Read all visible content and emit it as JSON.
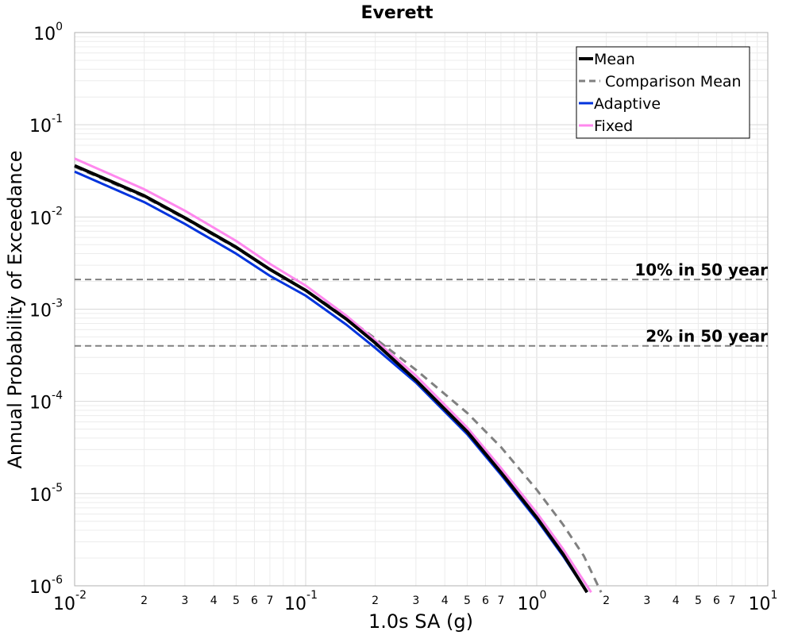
{
  "chart_data": {
    "type": "line",
    "title": "Everett",
    "xlabel": "1.0s SA (g)",
    "ylabel": "Annual Probability of Exceedance",
    "x_scale": "log",
    "y_scale": "log",
    "xlim": [
      0.01,
      10
    ],
    "ylim": [
      1e-06,
      1
    ],
    "grid": true,
    "legend_position": "top-right",
    "x_major_ticks": [
      {
        "value": 0.01,
        "base": "10",
        "exp": "-2"
      },
      {
        "value": 0.1,
        "base": "10",
        "exp": "-1"
      },
      {
        "value": 1,
        "base": "10",
        "exp": "0"
      },
      {
        "value": 10,
        "base": "10",
        "exp": "1"
      }
    ],
    "x_minor_tick_labels": [
      "2",
      "3",
      "4",
      "5",
      "6",
      "7"
    ],
    "y_major_ticks": [
      {
        "value": 1,
        "base": "10",
        "exp": "0"
      },
      {
        "value": 0.1,
        "base": "10",
        "exp": "-1"
      },
      {
        "value": 0.01,
        "base": "10",
        "exp": "-2"
      },
      {
        "value": 0.001,
        "base": "10",
        "exp": "-3"
      },
      {
        "value": 0.0001,
        "base": "10",
        "exp": "-4"
      },
      {
        "value": 1e-05,
        "base": "10",
        "exp": "-5"
      },
      {
        "value": 1e-06,
        "base": "10",
        "exp": "-6"
      }
    ],
    "reference_lines": [
      {
        "label": "10% in 50 year",
        "y": 0.0021,
        "color": "#808080"
      },
      {
        "label": "2% in 50 year",
        "y": 0.0004,
        "color": "#808080"
      }
    ],
    "series": [
      {
        "name": "Mean",
        "color": "#000000",
        "style": "solid",
        "width": 4,
        "points": [
          [
            0.01,
            0.036
          ],
          [
            0.02,
            0.017
          ],
          [
            0.03,
            0.0098
          ],
          [
            0.05,
            0.0047
          ],
          [
            0.07,
            0.0027
          ],
          [
            0.1,
            0.0016
          ],
          [
            0.15,
            0.00078
          ],
          [
            0.2,
            0.00043
          ],
          [
            0.3,
            0.00017
          ],
          [
            0.5,
            4.7e-05
          ],
          [
            0.7,
            1.7e-05
          ],
          [
            1.0,
            5.5e-06
          ],
          [
            1.3,
            2.2e-06
          ],
          [
            1.65,
            8.5e-07
          ]
        ]
      },
      {
        "name": "Comparison Mean",
        "color": "#808080",
        "style": "dashed",
        "width": 3,
        "points": [
          [
            0.01,
            0.035
          ],
          [
            0.02,
            0.0165
          ],
          [
            0.03,
            0.0096
          ],
          [
            0.05,
            0.0046
          ],
          [
            0.07,
            0.0027
          ],
          [
            0.1,
            0.0016
          ],
          [
            0.15,
            0.00082
          ],
          [
            0.2,
            0.00048
          ],
          [
            0.3,
            0.00022
          ],
          [
            0.5,
            7.5e-05
          ],
          [
            0.7,
            3.2e-05
          ],
          [
            1.0,
            1.1e-05
          ],
          [
            1.3,
            4.6e-06
          ],
          [
            1.6,
            2.1e-06
          ],
          [
            1.9,
            8.5e-07
          ]
        ]
      },
      {
        "name": "Adaptive",
        "color": "#0033dd",
        "style": "solid",
        "width": 3,
        "points": [
          [
            0.01,
            0.031
          ],
          [
            0.02,
            0.0145
          ],
          [
            0.03,
            0.0084
          ],
          [
            0.05,
            0.004
          ],
          [
            0.07,
            0.0023
          ],
          [
            0.1,
            0.0014
          ],
          [
            0.15,
            0.00068
          ],
          [
            0.2,
            0.00038
          ],
          [
            0.3,
            0.00016
          ],
          [
            0.5,
            4.4e-05
          ],
          [
            0.7,
            1.6e-05
          ],
          [
            1.0,
            5.2e-06
          ],
          [
            1.3,
            2.1e-06
          ],
          [
            1.65,
            8.5e-07
          ]
        ]
      },
      {
        "name": "Fixed",
        "color": "#ff88ee",
        "style": "solid",
        "width": 3,
        "points": [
          [
            0.01,
            0.043
          ],
          [
            0.02,
            0.02
          ],
          [
            0.03,
            0.0117
          ],
          [
            0.05,
            0.0055
          ],
          [
            0.07,
            0.0031
          ],
          [
            0.1,
            0.0018
          ],
          [
            0.15,
            0.00085
          ],
          [
            0.2,
            0.00046
          ],
          [
            0.3,
            0.00019
          ],
          [
            0.5,
            5.2e-05
          ],
          [
            0.7,
            1.9e-05
          ],
          [
            1.0,
            6.2e-06
          ],
          [
            1.3,
            2.5e-06
          ],
          [
            1.72,
            8.5e-07
          ]
        ]
      }
    ]
  }
}
